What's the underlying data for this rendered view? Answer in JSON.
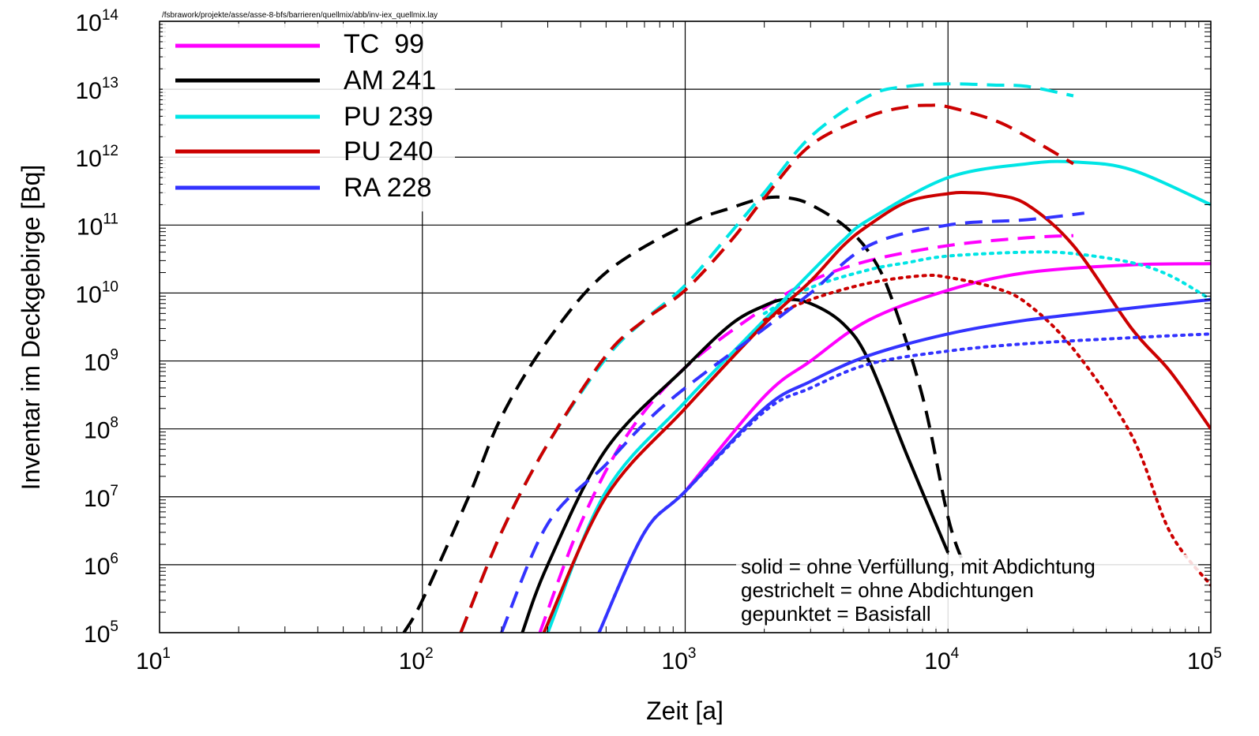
{
  "chart_data": {
    "type": "line",
    "title": "",
    "header_path": "/fsbrawork/projekte/asse/asse-8-bfs/barrieren/quellmix/abb/inv-iex_quellmix.lay",
    "xlabel": "Zeit [a]",
    "ylabel": "Inventar im Deckgebirge [Bq]",
    "xscale": "log",
    "yscale": "log",
    "xlim": [
      10,
      100000
    ],
    "ylim": [
      100000,
      100000000000000
    ],
    "grid": true,
    "legend_position": "top-left",
    "x_ticks": [
      {
        "base": "10",
        "exp": "1"
      },
      {
        "base": "10",
        "exp": "2"
      },
      {
        "base": "10",
        "exp": "3"
      },
      {
        "base": "10",
        "exp": "4"
      },
      {
        "base": "10",
        "exp": "5"
      }
    ],
    "y_ticks": [
      {
        "base": "10",
        "exp": "5"
      },
      {
        "base": "10",
        "exp": "6"
      },
      {
        "base": "10",
        "exp": "7"
      },
      {
        "base": "10",
        "exp": "8"
      },
      {
        "base": "10",
        "exp": "9"
      },
      {
        "base": "10",
        "exp": "10"
      },
      {
        "base": "10",
        "exp": "11"
      },
      {
        "base": "10",
        "exp": "12"
      },
      {
        "base": "10",
        "exp": "13"
      },
      {
        "base": "10",
        "exp": "14"
      }
    ],
    "legend": [
      {
        "label": "TC  99",
        "color": "#ff00ff"
      },
      {
        "label": "AM 241",
        "color": "#000000"
      },
      {
        "label": "PU 239",
        "color": "#00e5e5"
      },
      {
        "label": "PU 240",
        "color": "#cc0000"
      },
      {
        "label": "RA 228",
        "color": "#3333ff"
      }
    ],
    "annotations": [
      "solid = ohne Verfüllung, mit Abdichtung",
      "gestrichelt = ohne Abdichtungen",
      "gepunktet = Basisfall"
    ],
    "series": [
      {
        "nuclide": "TC 99",
        "color": "#ff00ff",
        "style": "solid",
        "x": [
          1000,
          2000,
          3000,
          5000,
          10000,
          20000,
          50000,
          100000
        ],
        "y": [
          12000000.0,
          300000000.0,
          1000000000.0,
          4000000000.0,
          11000000000.0,
          20000000000.0,
          26000000000.0,
          27000000000.0
        ]
      },
      {
        "nuclide": "TC 99",
        "color": "#ff00ff",
        "style": "dashed",
        "x": [
          280,
          400,
          600,
          1000,
          2000,
          3000,
          5000,
          10000,
          20000,
          30000
        ],
        "y": [
          100000.0,
          4000000.0,
          80000000.0,
          800000000.0,
          6000000000.0,
          15000000000.0,
          30000000000.0,
          50000000000.0,
          65000000000.0,
          70000000000.0
        ]
      },
      {
        "nuclide": "AM 241",
        "color": "#000000",
        "style": "solid",
        "x": [
          240,
          300,
          500,
          1000,
          1500,
          2000,
          2400,
          3000,
          4000,
          5000,
          7000,
          10000
        ],
        "y": [
          100000.0,
          1000000.0,
          50000000.0,
          800000000.0,
          3500000000.0,
          6500000000.0,
          8000000000.0,
          7000000000.0,
          3500000000.0,
          1000000000.0,
          40000000.0,
          1500000.0
        ],
        "comment": "curve drops towards 1e5 just above 1e4"
      },
      {
        "nuclide": "AM 241",
        "color": "#000000",
        "style": "dashed",
        "x": [
          85,
          100,
          150,
          200,
          300,
          500,
          1000,
          1500,
          2000,
          2500,
          3000,
          4000,
          5000,
          6000,
          8000,
          10000,
          11500
        ],
        "y": [
          100000.0,
          300000.0,
          10000000.0,
          150000000.0,
          2000000000.0,
          20000000000.0,
          100000000000.0,
          180000000000.0,
          250000000000.0,
          250000000000.0,
          200000000000.0,
          100000000000.0,
          40000000000.0,
          10000000000.0,
          300000000.0,
          5000000.0,
          1000000.0
        ]
      },
      {
        "nuclide": "PU 239",
        "color": "#00e5e5",
        "style": "solid",
        "x": [
          300,
          500,
          1000,
          2000,
          3000,
          4000,
          5000,
          10000,
          20000,
          30000,
          50000,
          100000
        ],
        "y": [
          100000.0,
          12000000.0,
          250000000.0,
          4000000000.0,
          20000000000.0,
          60000000000.0,
          120000000000.0,
          500000000000.0,
          800000000000.0,
          850000000000.0,
          650000000000.0,
          200000000000.0
        ]
      },
      {
        "nuclide": "PU 239",
        "color": "#00e5e5",
        "style": "dashed",
        "x": [
          140,
          200,
          300,
          500,
          700,
          1000,
          1500,
          2000,
          3000,
          5000,
          7000,
          10000,
          15000,
          20000,
          30000
        ],
        "y": [
          100000.0,
          3000000.0,
          60000000.0,
          1100000000.0,
          4000000000.0,
          13000000000.0,
          80000000000.0,
          300000000000.0,
          2000000000000.0,
          8000000000000.0,
          11000000000000.0,
          12000000000000.0,
          11500000000000.0,
          11000000000000.0,
          8000000000000.0
        ]
      },
      {
        "nuclide": "PU 239",
        "color": "#00e5e5",
        "style": "dotted",
        "x": [
          2000,
          3000,
          5000,
          7000,
          10000,
          20000,
          30000,
          50000,
          70000,
          100000
        ],
        "y": [
          5000000000.0,
          12000000000.0,
          22000000000.0,
          28000000000.0,
          35000000000.0,
          40000000000.0,
          38000000000.0,
          28000000000.0,
          18000000000.0,
          8000000000.0
        ]
      },
      {
        "nuclide": "PU 240",
        "color": "#cc0000",
        "style": "solid",
        "x": [
          290,
          500,
          1000,
          2000,
          3000,
          4000,
          5000,
          7000,
          10000,
          12000,
          15000,
          20000,
          30000,
          50000,
          70000,
          100000
        ],
        "y": [
          100000.0,
          10000000.0,
          200000000.0,
          3500000000.0,
          15000000000.0,
          50000000000.0,
          100000000000.0,
          220000000000.0,
          290000000000.0,
          300000000000.0,
          280000000000.0,
          200000000000.0,
          50000000000.0,
          3000000000.0,
          700000000.0,
          100000000.0
        ]
      },
      {
        "nuclide": "PU 240",
        "color": "#cc0000",
        "style": "dashed",
        "x": [
          140,
          200,
          300,
          500,
          700,
          1000,
          1500,
          2000,
          3000,
          5000,
          7000,
          8500,
          10000,
          15000,
          20000,
          30000
        ],
        "y": [
          100000.0,
          3000000.0,
          60000000.0,
          1200000000.0,
          4000000000.0,
          11000000000.0,
          60000000000.0,
          250000000000.0,
          1500000000000.0,
          4000000000000.0,
          5500000000000.0,
          5800000000000.0,
          5500000000000.0,
          3500000000000.0,
          2000000000000.0,
          800000000000.0
        ]
      },
      {
        "nuclide": "PU 240",
        "color": "#cc0000",
        "style": "dotted",
        "x": [
          2000,
          3000,
          5000,
          8000,
          10000,
          15000,
          20000,
          30000,
          50000,
          70000,
          100000
        ],
        "y": [
          4000000000.0,
          8000000000.0,
          14000000000.0,
          18000000000.0,
          17000000000.0,
          12000000000.0,
          7000000000.0,
          1500000000.0,
          80000000.0,
          3000000.0,
          500000.0
        ]
      },
      {
        "nuclide": "RA 228",
        "color": "#3333ff",
        "style": "solid",
        "x": [
          470,
          700,
          1000,
          2000,
          3000,
          5000,
          10000,
          20000,
          50000,
          100000
        ],
        "y": [
          100000.0,
          3000000.0,
          12000000.0,
          200000000.0,
          500000000.0,
          1200000000.0,
          2500000000.0,
          4000000000.0,
          6000000000.0,
          8000000000.0
        ]
      },
      {
        "nuclide": "RA 228",
        "color": "#3333ff",
        "style": "dashed",
        "x": [
          200,
          300,
          500,
          700,
          1000,
          2000,
          3000,
          5000,
          10000,
          20000,
          33000
        ],
        "y": [
          100000.0,
          4000000.0,
          30000000.0,
          120000000.0,
          400000000.0,
          3000000000.0,
          10000000000.0,
          50000000000.0,
          100000000000.0,
          120000000000.0,
          150000000000.0
        ]
      },
      {
        "nuclide": "RA 228",
        "color": "#3333ff",
        "style": "dotted",
        "x": [
          470,
          700,
          1000,
          2000,
          3000,
          5000,
          10000,
          20000,
          50000,
          100000
        ],
        "y": [
          100000.0,
          3000000.0,
          12000000.0,
          180000000.0,
          400000000.0,
          900000000.0,
          1400000000.0,
          1800000000.0,
          2200000000.0,
          2500000000.0
        ]
      }
    ]
  }
}
